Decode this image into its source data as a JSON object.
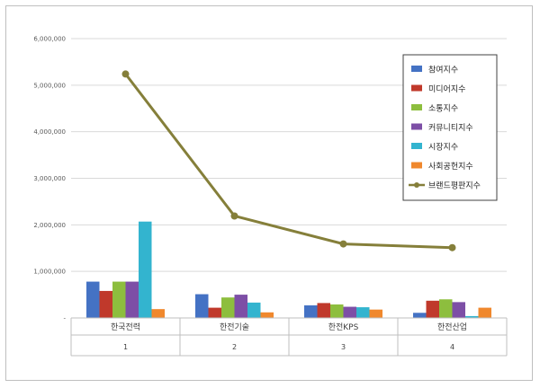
{
  "chart_data": {
    "type": "bar",
    "title": "",
    "xlabel": "",
    "ylabel": "",
    "ylim": [
      0,
      6000000
    ],
    "yticks": [
      {
        "value": 0,
        "label": "-"
      },
      {
        "value": 1000000,
        "label": "1,000,000"
      },
      {
        "value": 2000000,
        "label": "2,000,000"
      },
      {
        "value": 3000000,
        "label": "3,000,000"
      },
      {
        "value": 4000000,
        "label": "4,000,000"
      },
      {
        "value": 5000000,
        "label": "5,000,000"
      },
      {
        "value": 6000000,
        "label": "6,000,000"
      }
    ],
    "categories": [
      "한국전력",
      "한전기술",
      "한전KPS",
      "한전산업"
    ],
    "category_index": [
      "1",
      "2",
      "3",
      "4"
    ],
    "grid": true,
    "legend_position": "top-right",
    "series": [
      {
        "name": "참여지수",
        "kind": "bar",
        "color": "#4472C4",
        "values": [
          780000,
          510000,
          270000,
          110000
        ]
      },
      {
        "name": "미디어지수",
        "kind": "bar",
        "color": "#C0392B",
        "values": [
          580000,
          220000,
          320000,
          370000
        ]
      },
      {
        "name": "소통지수",
        "kind": "bar",
        "color": "#8DBE3E",
        "values": [
          780000,
          440000,
          290000,
          400000
        ]
      },
      {
        "name": "커뮤니티지수",
        "kind": "bar",
        "color": "#7D4FA6",
        "values": [
          780000,
          500000,
          240000,
          340000
        ]
      },
      {
        "name": "시장지수",
        "kind": "bar",
        "color": "#33B4CF",
        "values": [
          2070000,
          330000,
          230000,
          40000
        ]
      },
      {
        "name": "사회공헌지수",
        "kind": "bar",
        "color": "#F0882D",
        "values": [
          190000,
          120000,
          180000,
          220000
        ]
      },
      {
        "name": "브랜드평판지수",
        "kind": "line",
        "color": "#857F3A",
        "values": [
          5240000,
          2190000,
          1590000,
          1510000
        ]
      }
    ]
  }
}
